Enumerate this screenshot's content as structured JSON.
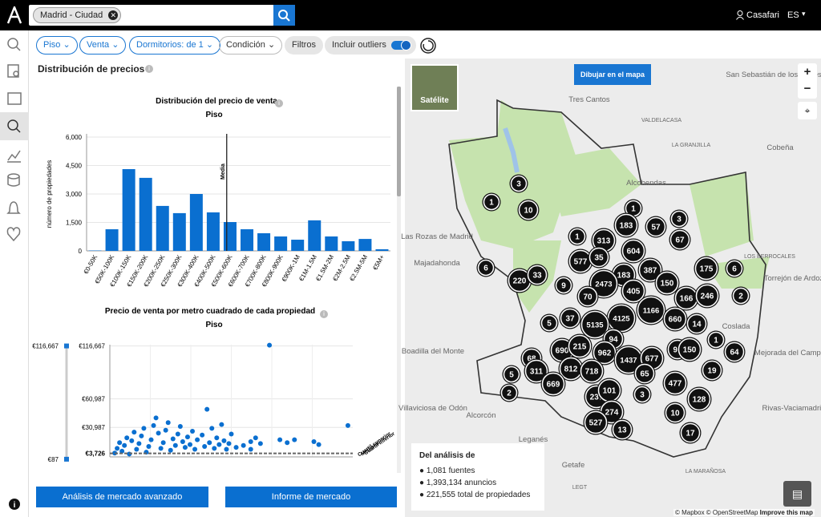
{
  "header": {
    "search_chip": "Madrid - Ciudad",
    "user": "Casafari",
    "language": "ES"
  },
  "filters": {
    "items": [
      "Piso",
      "Venta",
      "Dormitorios: de 1",
      "Condición"
    ],
    "filters_button": "Filtros",
    "outliers_toggle": "Incluir outliers"
  },
  "panel": {
    "title": "Distribución de precios"
  },
  "chart_data": [
    {
      "type": "bar",
      "title": "Distribución del precio de venta",
      "subtitle": "Piso",
      "y_label": "número de propiedades",
      "categories": [
        "€0-50K",
        "€50K-100K",
        "€100K-150K",
        "€150K-200K",
        "€200K-250K",
        "€250K-300K",
        "€300K-400K",
        "€400K-500K",
        "€500K-600K",
        "€600K-700K",
        "€700K-800K",
        "€800K-900K",
        "€900K-1M",
        "€1M-1.5M",
        "€1.5M-2M",
        "€2M-2.5M",
        "€2.5M-5M",
        "€5M+"
      ],
      "values": [
        20,
        1140,
        4310,
        3850,
        2370,
        1990,
        3000,
        2030,
        1520,
        1140,
        930,
        760,
        590,
        1610,
        760,
        510,
        630,
        85
      ],
      "color": "#0a6fd0",
      "ylim": [
        0,
        6000
      ],
      "yticks": [
        0,
        {
          "value": 1500,
          "label": "1,500"
        },
        {
          "value": 3000,
          "label": "3,000"
        },
        {
          "value": 4500,
          "label": "4,500"
        },
        {
          "value": 6000,
          "label": "6,000"
        }
      ],
      "grid": true,
      "annotations": [
        {
          "text": "Media",
          "x": "€500K-600K"
        }
      ]
    },
    {
      "type": "scatter",
      "title": "Precio de venta por metro cuadrado de cada propiedad",
      "subtitle": "Piso",
      "color": "#0a6fd0",
      "x": [
        2,
        3,
        4,
        5,
        6,
        7,
        8,
        9,
        10,
        11,
        12,
        13,
        14,
        15,
        16,
        17,
        18,
        19,
        20,
        21,
        22,
        23,
        24,
        25,
        26,
        27,
        28,
        29,
        30,
        31,
        32,
        33,
        34,
        35,
        36,
        38,
        39,
        40,
        41,
        42,
        43,
        44,
        45,
        46,
        47,
        48,
        49,
        50,
        52,
        55,
        58,
        60,
        62,
        65.7,
        58,
        70,
        73,
        76,
        84,
        86,
        98
      ],
      "values": [
        4000,
        9000,
        15000,
        6000,
        12000,
        20000,
        3000,
        17000,
        26000,
        8000,
        14000,
        22000,
        30000,
        5000,
        11000,
        18000,
        33000,
        41000,
        25000,
        9000,
        15000,
        28000,
        36000,
        7000,
        19000,
        12000,
        24000,
        32000,
        16000,
        10000,
        21000,
        13000,
        27000,
        8000,
        18000,
        23000,
        11000,
        50000,
        15000,
        30000,
        9000,
        20000,
        13000,
        34000,
        17000,
        8000,
        14000,
        24000,
        10000,
        12000,
        16000,
        20000,
        14000,
        117500,
        8000,
        18000,
        15000,
        18000,
        16000,
        13000,
        33000
      ],
      "xlim": [
        0,
        100
      ],
      "ylim": [
        0,
        118000
      ],
      "yticks": [
        {
          "value": 30987,
          "label": "€30,987"
        },
        {
          "value": 60987,
          "label": "€60,987"
        },
        {
          "value": 116667,
          "label": "€116,667"
        }
      ],
      "grid": true,
      "median": {
        "value": 3726,
        "label": "€3,726"
      },
      "annotations": [
        "Cuartil superior",
        "Mediana",
        "Cuartil inferior"
      ],
      "range_slider": {
        "max": {
          "value": 116667,
          "label": "€116,667"
        },
        "min": {
          "value": 87,
          "label": "€87"
        }
      }
    }
  ],
  "buttons": [
    "Análisis de mercado avanzado",
    "Informe de mercado"
  ],
  "map": {
    "satellite": "Satélite",
    "draw_button": "Dibujar en el mapa",
    "places": [
      "Tres Cantos",
      "Alcobendas",
      "LA GRANJILLA",
      "Cobeña",
      "Las Rozas de Madrid",
      "Majadahonda",
      "Boadilla del Monte",
      "Villaviciosa de Odón",
      "Alcorcón",
      "Leganés",
      "Getafe",
      "Coslada",
      "Mejorada del Campo",
      "Rivas-Vaciamadrid",
      "Torrejón de Ardoz",
      "LOS BERROCALES",
      "VALDELACASA",
      "LA MARAÑOSA",
      "LEGT",
      "San Sebastián de los Reyes"
    ],
    "clusters": [
      "3",
      "1",
      "10",
      "1",
      "3",
      "57",
      "183",
      "1",
      "313",
      "67",
      "604",
      "6",
      "577",
      "35",
      "175",
      "6",
      "220",
      "33",
      "183",
      "387",
      "2473",
      "9",
      "150",
      "405",
      "166",
      "246",
      "2",
      "70",
      "1166",
      "5",
      "37",
      "4125",
      "5135",
      "660",
      "14",
      "94",
      "1",
      "68",
      "690",
      "215",
      "962",
      "1437",
      "677",
      "94",
      "150",
      "64",
      "5",
      "311",
      "812",
      "718",
      "65",
      "19",
      "669",
      "477",
      "2",
      "237",
      "101",
      "3",
      "128",
      "274",
      "10",
      "527",
      "13",
      "17"
    ],
    "attribution": "© Mapbox © OpenStreetMap",
    "improve": "Improve this map"
  },
  "stats": {
    "title": "Del análisis de",
    "items": [
      "1,081 fuentes",
      "1,393,134 anuncios",
      "221,555 total de propiedades"
    ]
  }
}
